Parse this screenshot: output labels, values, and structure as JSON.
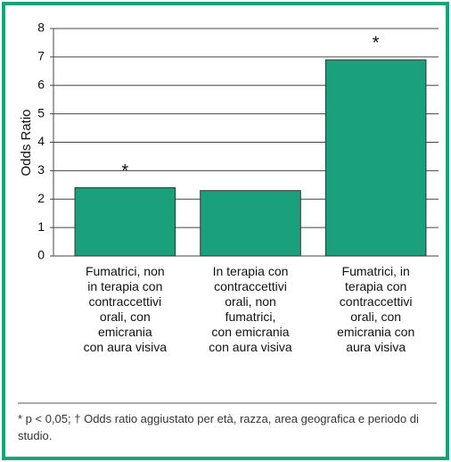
{
  "chart_data": {
    "type": "bar",
    "y_label": "Odds Ratio",
    "categories": [
      "Fumatrici, non\nin terapia con\ncontraccettivi\norali, con\nemicrania\ncon aura visiva",
      "In terapia con\ncontraccettivi\norali, non\nfumatrici,\ncon emicrania\ncon aura visiva",
      "Fumatrici, in\nterapia con\ncontraccettivi\norali, con\nemicrania con\naura visiva"
    ],
    "values": [
      2.4,
      2.3,
      6.9
    ],
    "color": "#1aa07a",
    "annotations": [
      {
        "text": "*",
        "index": 0
      },
      {
        "text": "*",
        "index": 2
      }
    ],
    "ylim": [
      0,
      8
    ],
    "yticks": [
      0,
      1,
      2,
      3,
      4,
      5,
      6,
      7,
      8
    ],
    "grid": true,
    "footnote": "* p < 0,05; † Odds ratio aggiustato per età, razza, area geografica e periodo di studio."
  }
}
